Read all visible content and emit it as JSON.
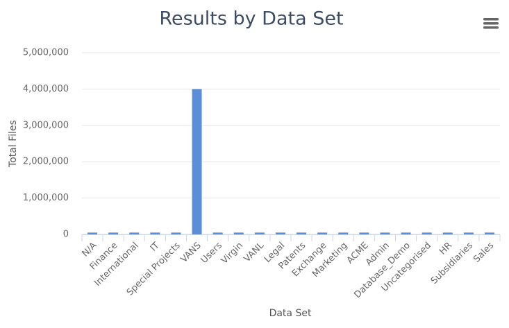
{
  "chart_data": {
    "type": "bar",
    "title": "Results by Data Set",
    "x_label": "Data Set",
    "y_label": "Total Files",
    "categories": [
      "N/A",
      "Finance",
      "International",
      "IT",
      "Special Projects",
      "VANS",
      "Users",
      "Virgin",
      "VANL",
      "Legal",
      "Patents",
      "Exchange",
      "Marketing",
      "ACME",
      "Admin",
      "Database_Demo",
      "Uncategorised",
      "HR",
      "Subsidiaries",
      "Sales"
    ],
    "values": [
      50000,
      50000,
      50000,
      50000,
      50000,
      4000000,
      50000,
      50000,
      50000,
      50000,
      50000,
      50000,
      50000,
      50000,
      50000,
      50000,
      50000,
      50000,
      50000,
      50000
    ],
    "color": "#5a8fd8",
    "ylim": [
      0,
      5000000
    ],
    "yticks": [
      0,
      {
        "value": 1000000,
        "label": "1,000,000"
      },
      {
        "value": 2000000,
        "label": "2,000,000"
      },
      {
        "value": 3000000,
        "label": "3,000,000"
      },
      {
        "value": 4000000,
        "label": "4,000,000"
      },
      {
        "value": 5000000,
        "label": "5,000,000"
      }
    ],
    "grid": true
  }
}
